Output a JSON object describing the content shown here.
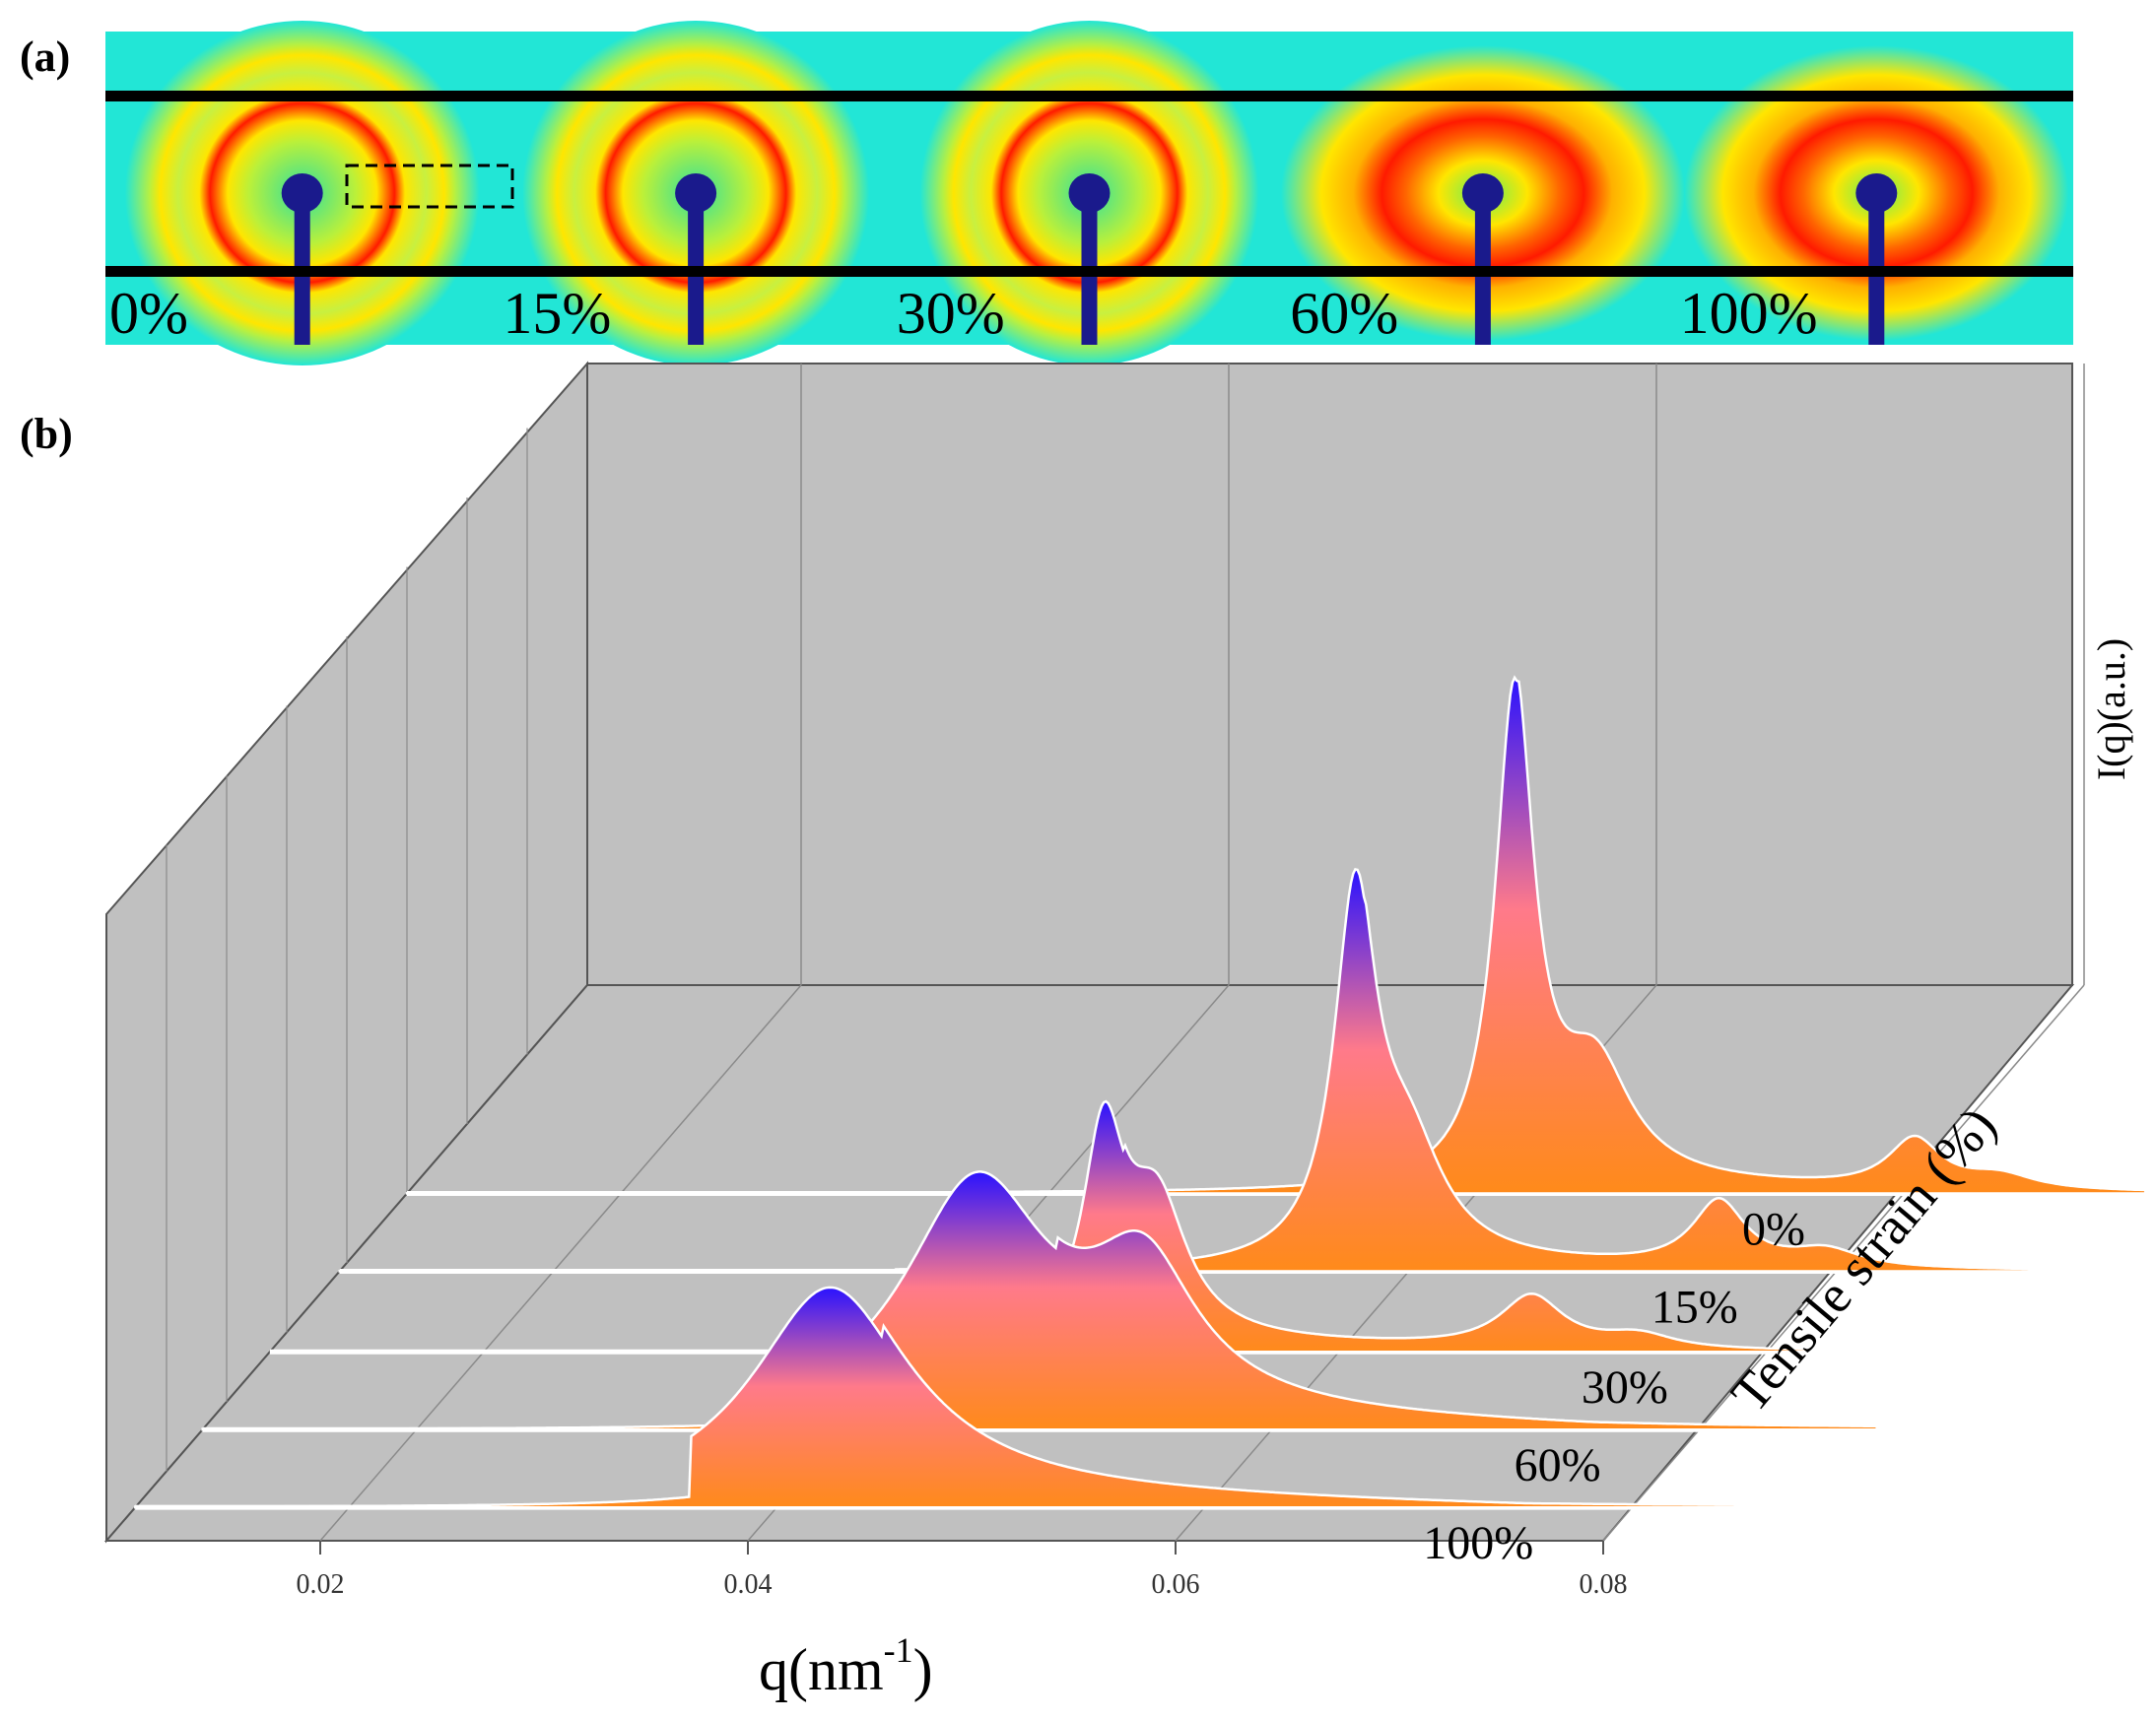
{
  "chart_data": [
    {
      "panel": "(a)",
      "type": "image-strip",
      "description_free": true,
      "strains": [
        "0%",
        "15%",
        "30%",
        "60%",
        "100%"
      ],
      "colors": {
        "background": "#22e6d6",
        "ring_red": "#ff1a00",
        "ring_yellow": "#ffe600",
        "beamstop": "#1a1a8c"
      }
    },
    {
      "panel": "(b)",
      "type": "area",
      "title": "",
      "xlabel_main": "q",
      "xlabel_unit": "nm",
      "xlabel_exp": "-1",
      "xlim": [
        0.01,
        0.08
      ],
      "xticks": [
        0.02,
        0.04,
        0.06,
        0.08
      ],
      "xtick_labels": [
        "0.02",
        "0.04",
        "0.06",
        "0.08"
      ],
      "ylabel": "I(q)(a.u.)",
      "zlabel": "Tensile strain (%)",
      "series": [
        {
          "name": "100%",
          "peaks": [
            {
              "q": 0.0425,
              "h": 1.0,
              "w": 0.0045
            }
          ],
          "tail": {
            "start": 0.045,
            "end": 0.075,
            "h": 0.06
          }
        },
        {
          "name": "60%",
          "peaks": [
            {
              "q": 0.0462,
              "h": 1.0,
              "w": 0.0042
            },
            {
              "q": 0.054,
              "h": 0.55,
              "w": 0.003
            }
          ],
          "tail": {
            "start": 0.05,
            "end": 0.075,
            "h": 0.05
          }
        },
        {
          "name": "30%",
          "peaks": [
            {
              "q": 0.049,
              "h": 1.0,
              "w": 0.0012
            },
            {
              "q": 0.0515,
              "h": 0.62,
              "w": 0.0017
            },
            {
              "q": 0.069,
              "h": 0.25,
              "w": 0.0018
            },
            {
              "q": 0.074,
              "h": 0.07,
              "w": 0.002
            }
          ],
          "tail": {
            "start": 0.05,
            "end": 0.074,
            "h": 0.05
          }
        },
        {
          "name": "15%",
          "peaks": [
            {
              "q": 0.0575,
              "h": 1.0,
              "w": 0.0012
            },
            {
              "q": 0.06,
              "h": 0.28,
              "w": 0.002
            },
            {
              "q": 0.0745,
              "h": 0.18,
              "w": 0.0015
            },
            {
              "q": 0.0795,
              "h": 0.05,
              "w": 0.002
            }
          ],
          "tail": {
            "start": 0.058,
            "end": 0.08,
            "h": 0.02
          }
        },
        {
          "name": "0%",
          "peaks": [
            {
              "q": 0.0618,
              "h": 1.0,
              "w": 0.0011
            },
            {
              "q": 0.0656,
              "h": 0.22,
              "w": 0.002
            },
            {
              "q": 0.0805,
              "h": 0.1,
              "w": 0.0015
            },
            {
              "q": 0.0845,
              "h": 0.03,
              "w": 0.002
            }
          ],
          "tail": {
            "start": 0.062,
            "end": 0.085,
            "h": 0.02
          }
        }
      ],
      "peak_height_scale": {
        "100%": 0.29,
        "60%": 0.34,
        "30%": 0.33,
        "15%": 0.53,
        "0%": 0.68
      },
      "fill_colors": {
        "top": "#2a12ff",
        "middle": "#ff7a8a",
        "bottom": "#ff8a1a"
      },
      "wall_color": "#c0c0c0"
    }
  ]
}
